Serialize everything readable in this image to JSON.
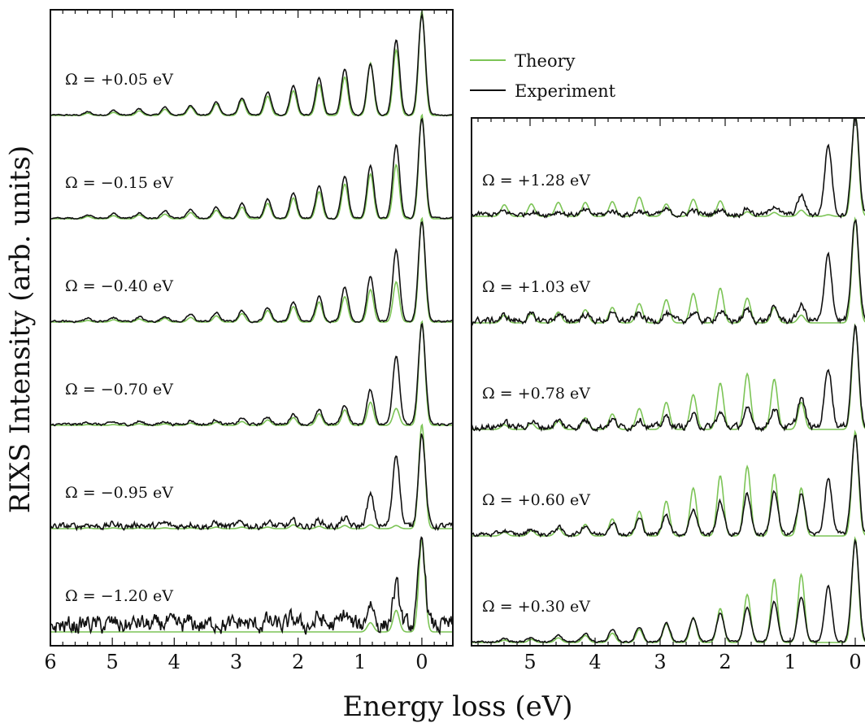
{
  "chart_data": {
    "type": "line",
    "xlabel": "Energy loss (eV)",
    "ylabel": "RIXS Intensity (arb. units)",
    "legend": {
      "placement": "top-center",
      "entries": [
        {
          "name": "Theory",
          "color": "#7cc456"
        },
        {
          "name": "Experiment",
          "color": "#111111"
        }
      ]
    },
    "colors": {
      "theory": "#7cc456",
      "experiment": "#111111"
    },
    "panels": [
      {
        "id": "left",
        "xlim": [
          6,
          -0.5
        ],
        "xticks": [
          "6",
          "5",
          "4",
          "3",
          "2",
          "1",
          "0"
        ],
        "xtick_values": [
          6,
          5,
          4,
          3,
          2,
          1,
          0
        ],
        "traces": [
          {
            "omega_label": "Ω = +0.05 eV",
            "noise": 0.01,
            "theory": [
              1.35,
              0.85,
              0.68,
              0.5,
              0.4,
              0.32,
              0.25,
              0.2,
              0.15,
              0.11,
              0.08,
              0.06,
              0.04,
              0.03
            ],
            "experiment": [
              1.3,
              0.98,
              0.67,
              0.6,
              0.48,
              0.38,
              0.3,
              0.22,
              0.17,
              0.13,
              0.1,
              0.08,
              0.06,
              0.04
            ]
          },
          {
            "omega_label": "Ω = −0.15 eV",
            "noise": 0.012,
            "theory": [
              1.35,
              0.7,
              0.58,
              0.45,
              0.35,
              0.27,
              0.2,
              0.15,
              0.11,
              0.08,
              0.06,
              0.05,
              0.04,
              0.03
            ],
            "experiment": [
              1.3,
              0.95,
              0.68,
              0.55,
              0.42,
              0.33,
              0.25,
              0.19,
              0.14,
              0.11,
              0.09,
              0.07,
              0.06,
              0.05
            ]
          },
          {
            "omega_label": "Ω = −0.40 eV",
            "noise": 0.015,
            "theory": [
              1.35,
              0.52,
              0.42,
              0.33,
              0.26,
              0.2,
              0.15,
              0.11,
              0.08,
              0.06,
              0.05,
              0.04,
              0.03,
              0.02
            ],
            "experiment": [
              1.3,
              0.93,
              0.58,
              0.45,
              0.32,
              0.25,
              0.18,
              0.14,
              0.11,
              0.09,
              0.07,
              0.06,
              0.05,
              0.04
            ]
          },
          {
            "omega_label": "Ω = −0.70 eV",
            "noise": 0.02,
            "theory": [
              1.35,
              0.22,
              0.3,
              0.2,
              0.15,
              0.1,
              0.07,
              0.05,
              0.04,
              0.03,
              0.02,
              0.02,
              0.01,
              0.01
            ],
            "experiment": [
              1.3,
              0.9,
              0.45,
              0.25,
              0.18,
              0.14,
              0.1,
              0.08,
              0.06,
              0.05,
              0.04,
              0.04,
              0.03,
              0.03
            ]
          },
          {
            "omega_label": "Ω = −0.95 eV",
            "noise": 0.05,
            "theory": [
              1.35,
              0.04,
              0.05,
              0.04,
              0.03,
              0.05,
              0.02,
              0.02,
              0.02,
              0.01,
              0.01,
              0.01,
              0.01,
              0.01
            ],
            "experiment": [
              1.2,
              0.95,
              0.4,
              0.1,
              0.08,
              0.06,
              0.05,
              0.05,
              0.04,
              0.04,
              0.04,
              0.03,
              0.03,
              0.03
            ]
          },
          {
            "omega_label": "Ω = −1.20 eV",
            "noise": 0.14,
            "theory": [
              1.2,
              0.28,
              0.12,
              0,
              0,
              0,
              0,
              0,
              0,
              0,
              0,
              0,
              0,
              0
            ],
            "experiment": [
              1.1,
              0.5,
              0.3,
              0.15,
              0.1,
              0.08,
              0.06,
              0.05,
              0.05,
              0.04,
              0.04,
              0.04,
              0.03,
              0.03
            ]
          }
        ]
      },
      {
        "id": "right",
        "xlim": [
          5.9,
          -0.35
        ],
        "xticks": [
          "5",
          "4",
          "3",
          "2",
          "1",
          "0"
        ],
        "xtick_values": [
          5,
          4,
          3,
          2,
          1,
          0
        ],
        "traces": [
          {
            "omega_label": "Ω = +1.28 eV",
            "noise": 0.04,
            "theory": [
              1.35,
              0.02,
              0.08,
              0.05,
              0.06,
              0.2,
              0.22,
              0.16,
              0.25,
              0.19,
              0.18,
              0.18,
              0.16,
              0.15
            ],
            "experiment": [
              1.3,
              0.9,
              0.25,
              0.12,
              0.08,
              0.07,
              0.06,
              0.06,
              0.05,
              0.05,
              0.05,
              0.04,
              0.04,
              0.04
            ]
          },
          {
            "omega_label": "Ω = +1.03 eV",
            "noise": 0.05,
            "theory": [
              1.35,
              0.0,
              0.1,
              0.2,
              0.32,
              0.45,
              0.38,
              0.3,
              0.25,
              0.2,
              0.17,
              0.14,
              0.12,
              0.1
            ],
            "experiment": [
              1.3,
              0.85,
              0.2,
              0.16,
              0.14,
              0.12,
              0.1,
              0.09,
              0.09,
              0.08,
              0.08,
              0.07,
              0.07,
              0.06
            ]
          },
          {
            "omega_label": "Ω = +0.78 eV",
            "noise": 0.05,
            "theory": [
              1.35,
              0.0,
              0.35,
              0.65,
              0.72,
              0.6,
              0.45,
              0.35,
              0.27,
              0.2,
              0.15,
              0.11,
              0.08,
              0.06
            ],
            "experiment": [
              1.3,
              0.78,
              0.38,
              0.25,
              0.22,
              0.18,
              0.15,
              0.13,
              0.11,
              0.1,
              0.09,
              0.08,
              0.07,
              0.06
            ]
          },
          {
            "omega_label": "Ω = +0.60 eV",
            "noise": 0.035,
            "theory": [
              1.35,
              0.0,
              0.62,
              0.8,
              0.9,
              0.78,
              0.62,
              0.45,
              0.32,
              0.22,
              0.15,
              0.1,
              0.07,
              0.05
            ],
            "experiment": [
              1.3,
              0.72,
              0.55,
              0.55,
              0.52,
              0.42,
              0.33,
              0.26,
              0.2,
              0.16,
              0.12,
              0.09,
              0.07,
              0.05
            ]
          },
          {
            "omega_label": "Ω = +0.30 eV",
            "noise": 0.015,
            "theory": [
              1.35,
              0.0,
              0.88,
              0.82,
              0.62,
              0.44,
              0.32,
              0.24,
              0.17,
              0.12,
              0.09,
              0.06,
              0.04,
              0.03
            ],
            "experiment": [
              1.3,
              0.72,
              0.58,
              0.52,
              0.45,
              0.37,
              0.3,
              0.24,
              0.19,
              0.15,
              0.11,
              0.08,
              0.06,
              0.04
            ]
          }
        ]
      }
    ]
  }
}
